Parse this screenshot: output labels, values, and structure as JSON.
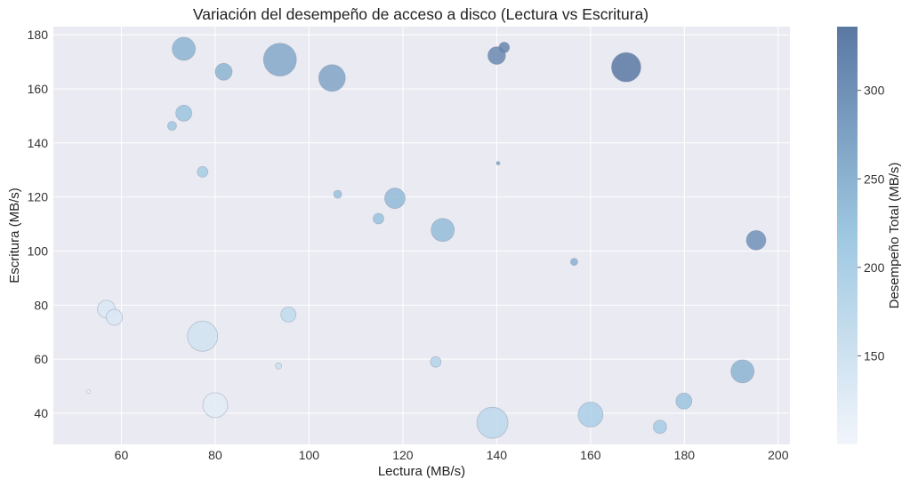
{
  "chart_data": {
    "type": "scatter",
    "title": "Variación del desempeño de acceso a disco (Lectura vs Escritura)",
    "xlabel": "Lectura (MB/s)",
    "ylabel": "Escritura (MB/s)",
    "colorbar_label": "Desempeño Total (MB/s)",
    "xlim": [
      45.5,
      202.5
    ],
    "ylim": [
      28.5,
      183
    ],
    "xticks": [
      60,
      80,
      100,
      120,
      140,
      160,
      180,
      200
    ],
    "yticks": [
      40,
      60,
      80,
      100,
      120,
      140,
      160,
      180
    ],
    "colorbar_range": [
      100,
      336
    ],
    "colorbar_ticks": [
      150,
      200,
      250,
      300
    ],
    "grid": true,
    "colors": {
      "plot_background": "#eaeaf2",
      "grid": "#ffffff",
      "colormap_low": "#f2f5fb",
      "colormap_mid": "#9ec8e2",
      "colormap_high": "#5b78a3"
    },
    "points": [
      {
        "x": 53.0,
        "y": 48.0,
        "total": 101,
        "size": 4
      },
      {
        "x": 56.8,
        "y": 78.5,
        "total": 135,
        "size": 20
      },
      {
        "x": 58.5,
        "y": 75.5,
        "total": 134,
        "size": 18
      },
      {
        "x": 70.8,
        "y": 146.3,
        "total": 217,
        "size": 10
      },
      {
        "x": 73.3,
        "y": 174.8,
        "total": 248,
        "size": 26
      },
      {
        "x": 73.3,
        "y": 151.0,
        "total": 224,
        "size": 18
      },
      {
        "x": 77.3,
        "y": 129.3,
        "total": 207,
        "size": 12
      },
      {
        "x": 77.3,
        "y": 68.5,
        "total": 146,
        "size": 34
      },
      {
        "x": 80.0,
        "y": 43.0,
        "total": 123,
        "size": 28
      },
      {
        "x": 81.8,
        "y": 166.3,
        "total": 248,
        "size": 19
      },
      {
        "x": 93.5,
        "y": 57.5,
        "total": 151,
        "size": 7
      },
      {
        "x": 93.8,
        "y": 170.8,
        "total": 265,
        "size": 37
      },
      {
        "x": 95.6,
        "y": 76.5,
        "total": 172,
        "size": 17
      },
      {
        "x": 104.9,
        "y": 164.0,
        "total": 269,
        "size": 30
      },
      {
        "x": 106.1,
        "y": 121.0,
        "total": 227,
        "size": 9
      },
      {
        "x": 114.8,
        "y": 112.0,
        "total": 227,
        "size": 12
      },
      {
        "x": 118.3,
        "y": 119.5,
        "total": 238,
        "size": 23
      },
      {
        "x": 127.0,
        "y": 59.0,
        "total": 186,
        "size": 12
      },
      {
        "x": 128.5,
        "y": 107.8,
        "total": 236,
        "size": 26
      },
      {
        "x": 139.1,
        "y": 36.5,
        "total": 176,
        "size": 35
      },
      {
        "x": 140.0,
        "y": 172.3,
        "total": 312,
        "size": 20
      },
      {
        "x": 140.3,
        "y": 132.5,
        "total": 273,
        "size": 4
      },
      {
        "x": 141.6,
        "y": 175.3,
        "total": 317,
        "size": 12
      },
      {
        "x": 156.5,
        "y": 96.0,
        "total": 253,
        "size": 8
      },
      {
        "x": 160.0,
        "y": 39.5,
        "total": 200,
        "size": 28
      },
      {
        "x": 167.6,
        "y": 168.0,
        "total": 336,
        "size": 33
      },
      {
        "x": 174.8,
        "y": 35.0,
        "total": 210,
        "size": 15
      },
      {
        "x": 179.9,
        "y": 44.5,
        "total": 224,
        "size": 18
      },
      {
        "x": 192.4,
        "y": 55.5,
        "total": 248,
        "size": 26
      },
      {
        "x": 195.3,
        "y": 104.0,
        "total": 299,
        "size": 22
      }
    ]
  }
}
